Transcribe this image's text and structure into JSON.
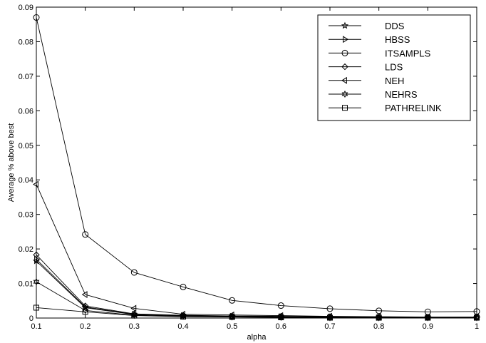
{
  "chart_data": {
    "type": "line",
    "title": "",
    "xlabel": "alpha",
    "ylabel": "Average % above best",
    "xlim": [
      0.1,
      1
    ],
    "ylim": [
      0,
      0.09
    ],
    "xticks": [
      "0.1",
      "0.2",
      "0.3",
      "0.4",
      "0.5",
      "0.6",
      "0.7",
      "0.8",
      "0.9",
      "1"
    ],
    "yticks": [
      "0",
      "0.01",
      "0.02",
      "0.03",
      "0.04",
      "0.05",
      "0.06",
      "0.07",
      "0.08",
      "0.09"
    ],
    "x": [
      0.1,
      0.2,
      0.3,
      0.4,
      0.5,
      0.6,
      0.7,
      0.8,
      0.9,
      1.0
    ],
    "grid": false,
    "legend_position": "top-right",
    "series": [
      {
        "name": "DDS",
        "marker": "star",
        "values": [
          0.0165,
          0.003,
          0.001,
          0.0006,
          0.0004,
          0.0003,
          0.0002,
          0.0001,
          0.0001,
          0.0001
        ]
      },
      {
        "name": "HBSS",
        "marker": "triangle-right",
        "values": [
          0.017,
          0.0032,
          0.0011,
          0.0007,
          0.0005,
          0.0004,
          0.0003,
          0.0002,
          0.0002,
          0.0002
        ]
      },
      {
        "name": "ITSAMPLS",
        "marker": "circle",
        "values": [
          0.087,
          0.0242,
          0.0132,
          0.009,
          0.0051,
          0.0036,
          0.0027,
          0.0021,
          0.0018,
          0.0019
        ]
      },
      {
        "name": "LDS",
        "marker": "diamond",
        "values": [
          0.0183,
          0.0035,
          0.0012,
          0.0008,
          0.0006,
          0.0005,
          0.0004,
          0.0003,
          0.0002,
          0.0002
        ]
      },
      {
        "name": "NEH",
        "marker": "triangle-left",
        "values": [
          0.0387,
          0.0068,
          0.0028,
          0.0011,
          0.0009,
          0.0007,
          0.0005,
          0.0004,
          0.0003,
          0.0003
        ]
      },
      {
        "name": "NEHRS",
        "marker": "hexagram",
        "values": [
          0.0105,
          0.0022,
          0.0008,
          0.0005,
          0.0003,
          0.0002,
          0.0001,
          0.0001,
          0.0001,
          0.0001
        ]
      },
      {
        "name": "PATHRELINK",
        "marker": "square",
        "values": [
          0.003,
          0.0018,
          0.0007,
          0.0004,
          0.0003,
          0.0002,
          0.0001,
          0.0001,
          0.0001,
          0.0001
        ]
      }
    ]
  }
}
